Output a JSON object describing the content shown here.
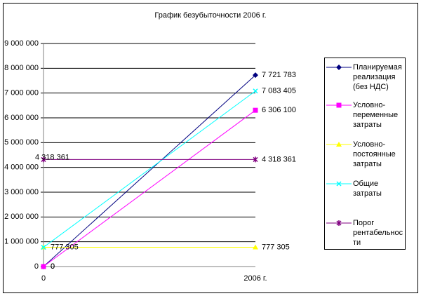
{
  "chart_data": {
    "type": "line",
    "title": "График безубыточности 2006 г.",
    "categories": [
      "0",
      "2006 г."
    ],
    "ylim": [
      0,
      9000000
    ],
    "yticks": [
      0,
      {
        "value": 1000000,
        "label": "1 000 000"
      },
      {
        "value": 2000000,
        "label": "2 000 000"
      },
      {
        "value": 3000000,
        "label": "3 000 000"
      },
      {
        "value": 4000000,
        "label": "4 000 000"
      },
      {
        "value": 5000000,
        "label": "5 000 000"
      },
      {
        "value": 6000000,
        "label": "6 000 000"
      },
      {
        "value": 7000000,
        "label": "7 000 000"
      },
      {
        "value": 8000000,
        "label": "8 000 000"
      },
      {
        "value": 9000000,
        "label": "9 000 000"
      }
    ],
    "grid": true,
    "legend": "right",
    "series": [
      {
        "name": "Планируемая реализация (без НДС)",
        "color": "#000080",
        "marker": "diamond",
        "values": [
          0,
          7721783
        ],
        "value_labels": [
          "0",
          "7 721 783"
        ]
      },
      {
        "name": "Условно-переменные затраты",
        "color": "#ff00ff",
        "marker": "square",
        "values": [
          0,
          6306100
        ],
        "value_labels": [
          "0",
          "6 306 100"
        ]
      },
      {
        "name": "Условно-постоянные затраты",
        "color": "#ffff00",
        "marker": "triangle",
        "values": [
          777305,
          777305
        ],
        "value_labels": [
          "777 305",
          "777 305"
        ]
      },
      {
        "name": "Общие затраты",
        "color": "#00ffff",
        "marker": "x",
        "values": [
          777305,
          7083405
        ],
        "value_labels": [
          null,
          "7 083 405"
        ]
      },
      {
        "name": "Порог рентабельности",
        "color": "#800080",
        "marker": "star",
        "values": [
          4318361,
          4318361
        ],
        "value_labels": [
          "4 318 361",
          "4 318 361"
        ]
      }
    ]
  }
}
